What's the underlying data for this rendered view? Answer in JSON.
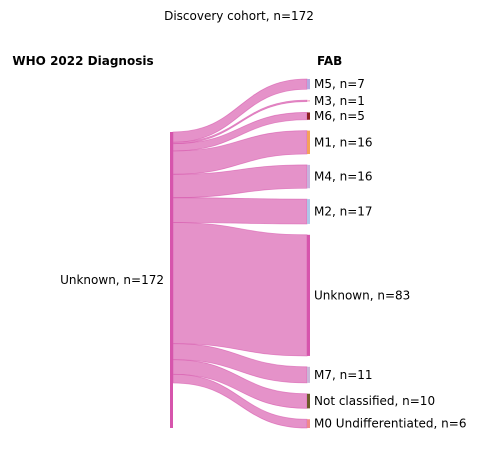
{
  "chart_data": {
    "type": "sankey",
    "title": "Discovery cohort, n=172",
    "left_header": "WHO 2022 Diagnosis",
    "right_header": "FAB",
    "source": {
      "label": "Unknown, n=172",
      "value": 172
    },
    "flow_color": "#e07fc0",
    "source_color": "#d655ac",
    "targets": [
      {
        "label": "M5, n=7",
        "value": 7,
        "color": "#b4aae0"
      },
      {
        "label": "M3, n=1",
        "value": 1,
        "color": "#f4b6cb"
      },
      {
        "label": "M6, n=5",
        "value": 5,
        "color": "#8c1f22"
      },
      {
        "label": "M1, n=16",
        "value": 16,
        "color": "#f5a25a"
      },
      {
        "label": "M4, n=16",
        "value": 16,
        "color": "#c7b3dd"
      },
      {
        "label": "M2, n=17",
        "value": 17,
        "color": "#aec7e8"
      },
      {
        "label": "Unknown, n=83",
        "value": 83,
        "color": "#d655ac"
      },
      {
        "label": "M7, n=11",
        "value": 11,
        "color": "#c9b7d8"
      },
      {
        "label": "Not classified, n=10",
        "value": 10,
        "color": "#6b5a2a"
      },
      {
        "label": "M0 Undifferentiated, n=6",
        "value": 6,
        "color": "#f08a8a"
      }
    ]
  }
}
